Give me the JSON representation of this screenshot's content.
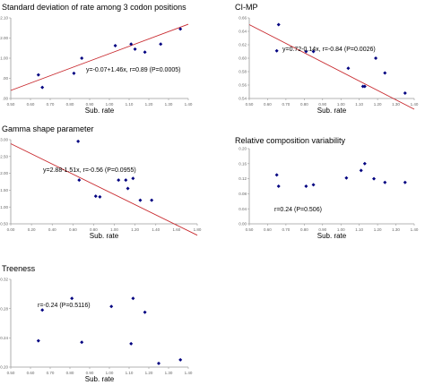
{
  "chart_data": [
    {
      "type": "scatter",
      "title": "Standard deviation of rate among 3  codon positions",
      "xlabel": "Sub. rate",
      "ylabel": "",
      "xlim": [
        0.5,
        1.4
      ],
      "ylim": [
        0.5,
        2.1
      ],
      "x_ticks": [
        "0.50",
        "0.60",
        "0.70",
        "0.80",
        "0.90",
        "1.00",
        "1.10",
        "1.20",
        "1.30",
        "1.40"
      ],
      "y_ticks": [
        "2.10",
        "2.00",
        "1.00",
        ".00",
        ".00"
      ],
      "annotation": "y=-0.07+1.46x, r=0.89 (P=0.0005)",
      "points": [
        {
          "x": 0.64,
          "y": 0.97
        },
        {
          "x": 0.66,
          "y": 0.72
        },
        {
          "x": 0.82,
          "y": 1.0
        },
        {
          "x": 0.86,
          "y": 1.3
        },
        {
          "x": 1.03,
          "y": 1.55
        },
        {
          "x": 1.11,
          "y": 1.58
        },
        {
          "x": 1.13,
          "y": 1.48
        },
        {
          "x": 1.18,
          "y": 1.42
        },
        {
          "x": 1.26,
          "y": 1.58
        },
        {
          "x": 1.36,
          "y": 1.88
        }
      ],
      "trend_line": {
        "intercept": -0.07,
        "slope": 1.46
      }
    },
    {
      "type": "scatter",
      "title": "CI-MP",
      "xlabel": "Sub. rate",
      "ylabel": "",
      "xlim": [
        0.5,
        1.4
      ],
      "ylim": [
        0.54,
        0.66
      ],
      "x_ticks": [
        "0.50",
        "0.60",
        "0.70",
        "0.80",
        "0.90",
        "1.00",
        "1.10",
        "1.20",
        "1.30",
        "1.40"
      ],
      "y_ticks": [
        "0.66",
        "0.64",
        "0.62",
        "0.60",
        "0.58",
        "0.56",
        "0.54"
      ],
      "annotation": "y=0.72-0.14x, r=-0.84 (P=0.0026)",
      "points": [
        {
          "x": 0.65,
          "y": 0.611
        },
        {
          "x": 0.66,
          "y": 0.65
        },
        {
          "x": 0.81,
          "y": 0.61
        },
        {
          "x": 0.85,
          "y": 0.61
        },
        {
          "x": 1.04,
          "y": 0.585
        },
        {
          "x": 1.12,
          "y": 0.558
        },
        {
          "x": 1.13,
          "y": 0.558
        },
        {
          "x": 1.19,
          "y": 0.6
        },
        {
          "x": 1.24,
          "y": 0.578
        },
        {
          "x": 1.35,
          "y": 0.548
        }
      ],
      "trend_line": {
        "intercept": 0.72,
        "slope": -0.14
      }
    },
    {
      "type": "scatter",
      "title": "Gamma shape parameter",
      "xlabel": "Sub. rate",
      "ylabel": "",
      "xlim": [
        0.0,
        1.8
      ],
      "ylim": [
        0.5,
        3.0
      ],
      "x_ticks": [
        "0.00",
        "0.20",
        "0.40",
        "0.60",
        "0.80",
        "1.00",
        "1.20",
        "1.40",
        "1.60",
        "1.80"
      ],
      "y_ticks": [
        "3.00",
        "2.50",
        "2.00",
        "1.50",
        "1.00",
        "0.50"
      ],
      "annotation": "y=2.88-1.51x, r=-0.56 (P=0.0955)",
      "points": [
        {
          "x": 0.65,
          "y": 2.95
        },
        {
          "x": 0.66,
          "y": 1.8
        },
        {
          "x": 0.82,
          "y": 1.32
        },
        {
          "x": 0.86,
          "y": 1.3
        },
        {
          "x": 1.04,
          "y": 1.8
        },
        {
          "x": 1.11,
          "y": 1.8
        },
        {
          "x": 1.13,
          "y": 1.55
        },
        {
          "x": 1.18,
          "y": 1.85
        },
        {
          "x": 1.25,
          "y": 1.2
        },
        {
          "x": 1.36,
          "y": 1.2
        }
      ],
      "trend_line": {
        "intercept": 2.88,
        "slope": -1.51
      }
    },
    {
      "type": "scatter",
      "title": "Relative composition variability",
      "xlabel": "Sub. rate",
      "ylabel": "",
      "xlim": [
        0.5,
        1.4
      ],
      "ylim": [
        0.0,
        0.2
      ],
      "x_ticks": [
        "0.50",
        "0.60",
        "0.70",
        "0.80",
        "0.90",
        "1.00",
        "1.10",
        "1.20",
        "1.30",
        "1.40"
      ],
      "y_ticks": [
        "0.20",
        "0.16",
        "0.12",
        "0.08",
        "0.04",
        "0.00"
      ],
      "annotation": "r=0.24 (P=0.506)",
      "points": [
        {
          "x": 0.65,
          "y": 0.13
        },
        {
          "x": 0.66,
          "y": 0.1
        },
        {
          "x": 0.81,
          "y": 0.1
        },
        {
          "x": 0.85,
          "y": 0.104
        },
        {
          "x": 1.03,
          "y": 0.122
        },
        {
          "x": 1.11,
          "y": 0.142
        },
        {
          "x": 1.13,
          "y": 0.16
        },
        {
          "x": 1.18,
          "y": 0.12
        },
        {
          "x": 1.24,
          "y": 0.11
        },
        {
          "x": 1.35,
          "y": 0.11
        }
      ]
    },
    {
      "type": "scatter",
      "title": "Treeness",
      "xlabel": "Sub. rate",
      "ylabel": "",
      "xlim": [
        0.5,
        1.4
      ],
      "ylim": [
        0.2,
        0.32
      ],
      "x_ticks": [
        "0.50",
        "0.60",
        "0.70",
        "0.80",
        "0.90",
        "1.00",
        "1.10",
        "1.20",
        "1.30",
        "1.40"
      ],
      "y_ticks": [
        "0.32",
        "0.28",
        "0.24",
        "0.20"
      ],
      "annotation": "r=-0.24 (P=0.5116)",
      "points": [
        {
          "x": 0.64,
          "y": 0.236
        },
        {
          "x": 0.66,
          "y": 0.278
        },
        {
          "x": 0.81,
          "y": 0.294
        },
        {
          "x": 0.86,
          "y": 0.234
        },
        {
          "x": 1.01,
          "y": 0.283
        },
        {
          "x": 1.11,
          "y": 0.232
        },
        {
          "x": 1.12,
          "y": 0.294
        },
        {
          "x": 1.18,
          "y": 0.275
        },
        {
          "x": 1.25,
          "y": 0.205
        },
        {
          "x": 1.36,
          "y": 0.21
        }
      ]
    }
  ],
  "colors": {
    "points": "#000080",
    "trend_line": "#c8282d",
    "axis": "#9a9a9a",
    "tick_text": "#666666"
  }
}
